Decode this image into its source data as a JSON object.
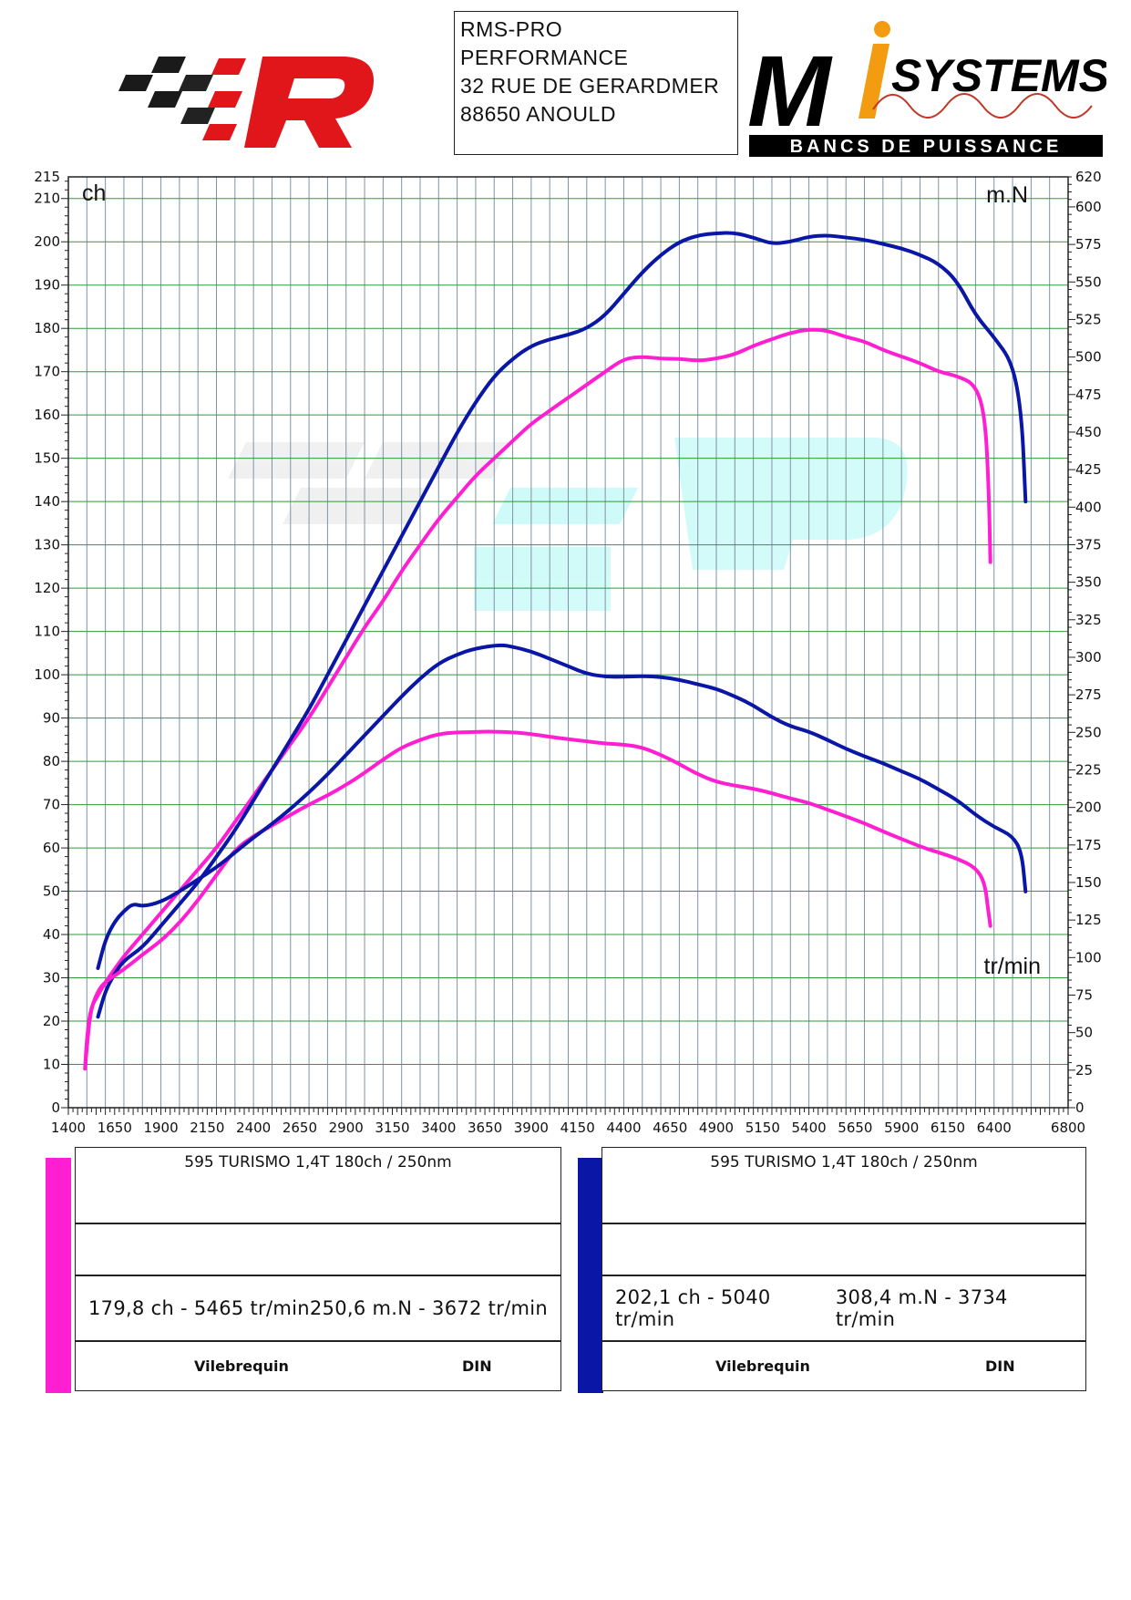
{
  "header": {
    "address_lines": [
      "RMS-PRO",
      "PERFORMANCE",
      "32 RUE DE GERARDMER",
      "88650 ANOULD"
    ],
    "logo_right": {
      "brand": "M",
      "brand_suffix": "SYSTEMS",
      "tagline": "BANCS DE PUISSANCE"
    }
  },
  "chart_data": {
    "type": "line",
    "xlabel": "tr/min",
    "ylabel_left": "ch",
    "ylabel_right": "m.N",
    "xlim": [
      1400,
      6800
    ],
    "ylim_left": [
      0,
      215
    ],
    "ylim_right": [
      0,
      620
    ],
    "x_ticks": [
      1400,
      1650,
      1900,
      2150,
      2400,
      2650,
      2900,
      3150,
      3400,
      3650,
      3900,
      4150,
      4400,
      4650,
      4900,
      5150,
      5400,
      5650,
      5900,
      6150,
      6400,
      6800
    ],
    "y_ticks_left": [
      0,
      10,
      20,
      30,
      40,
      50,
      60,
      70,
      80,
      90,
      100,
      110,
      120,
      130,
      140,
      150,
      160,
      170,
      180,
      190,
      200,
      210,
      215
    ],
    "y_ticks_right": [
      0,
      25,
      50,
      75,
      100,
      125,
      150,
      175,
      200,
      225,
      250,
      275,
      300,
      325,
      350,
      375,
      400,
      425,
      450,
      475,
      500,
      525,
      550,
      575,
      600,
      620
    ],
    "grid": true,
    "series": [
      {
        "name": "Power (pink)",
        "axis": "left",
        "color": "#ff1fd2",
        "points": [
          [
            1490,
            9
          ],
          [
            1500,
            16
          ],
          [
            1520,
            23
          ],
          [
            1560,
            26
          ],
          [
            1600,
            29
          ],
          [
            1650,
            32
          ],
          [
            1700,
            35
          ],
          [
            1800,
            40
          ],
          [
            1900,
            45
          ],
          [
            2000,
            50
          ],
          [
            2100,
            55
          ],
          [
            2200,
            60
          ],
          [
            2300,
            66
          ],
          [
            2400,
            72
          ],
          [
            2500,
            78
          ],
          [
            2600,
            84
          ],
          [
            2700,
            90
          ],
          [
            2800,
            97
          ],
          [
            2900,
            104
          ],
          [
            3000,
            111
          ],
          [
            3100,
            117
          ],
          [
            3200,
            124
          ],
          [
            3300,
            130
          ],
          [
            3400,
            136
          ],
          [
            3500,
            141
          ],
          [
            3600,
            146
          ],
          [
            3700,
            150
          ],
          [
            3800,
            154
          ],
          [
            3900,
            158
          ],
          [
            4000,
            161
          ],
          [
            4100,
            164
          ],
          [
            4200,
            167
          ],
          [
            4300,
            170
          ],
          [
            4400,
            173
          ],
          [
            4500,
            173.5
          ],
          [
            4600,
            173
          ],
          [
            4700,
            173
          ],
          [
            4800,
            172.5
          ],
          [
            4900,
            173
          ],
          [
            5000,
            174
          ],
          [
            5100,
            176
          ],
          [
            5200,
            177.5
          ],
          [
            5300,
            179
          ],
          [
            5400,
            179.8
          ],
          [
            5500,
            179.5
          ],
          [
            5600,
            178
          ],
          [
            5700,
            177
          ],
          [
            5800,
            175
          ],
          [
            5900,
            173.5
          ],
          [
            6000,
            172
          ],
          [
            6100,
            170
          ],
          [
            6200,
            169
          ],
          [
            6300,
            167
          ],
          [
            6350,
            160
          ],
          [
            6370,
            145
          ],
          [
            6380,
            126
          ]
        ]
      },
      {
        "name": "Power (blue)",
        "axis": "left",
        "color": "#0a16a6",
        "points": [
          [
            1560,
            21
          ],
          [
            1600,
            27
          ],
          [
            1650,
            31
          ],
          [
            1700,
            34
          ],
          [
            1800,
            37
          ],
          [
            1900,
            42
          ],
          [
            2000,
            47
          ],
          [
            2100,
            52
          ],
          [
            2200,
            58
          ],
          [
            2300,
            64
          ],
          [
            2400,
            71
          ],
          [
            2500,
            78
          ],
          [
            2600,
            85
          ],
          [
            2700,
            92
          ],
          [
            2800,
            100
          ],
          [
            2900,
            108
          ],
          [
            3000,
            116
          ],
          [
            3100,
            124
          ],
          [
            3200,
            132
          ],
          [
            3300,
            140
          ],
          [
            3400,
            148
          ],
          [
            3500,
            156
          ],
          [
            3600,
            163
          ],
          [
            3700,
            169
          ],
          [
            3800,
            173
          ],
          [
            3900,
            176
          ],
          [
            4000,
            177.5
          ],
          [
            4100,
            178.5
          ],
          [
            4200,
            180
          ],
          [
            4300,
            183
          ],
          [
            4400,
            188
          ],
          [
            4500,
            193
          ],
          [
            4600,
            197
          ],
          [
            4700,
            200
          ],
          [
            4800,
            201.5
          ],
          [
            4900,
            202
          ],
          [
            5000,
            202.1
          ],
          [
            5100,
            201
          ],
          [
            5200,
            199.5
          ],
          [
            5300,
            200
          ],
          [
            5400,
            201.2
          ],
          [
            5500,
            201.5
          ],
          [
            5600,
            201
          ],
          [
            5700,
            200.5
          ],
          [
            5800,
            199.5
          ],
          [
            5900,
            198.5
          ],
          [
            6000,
            197
          ],
          [
            6100,
            195
          ],
          [
            6200,
            191
          ],
          [
            6300,
            183
          ],
          [
            6400,
            178
          ],
          [
            6500,
            172
          ],
          [
            6550,
            160
          ],
          [
            6570,
            140
          ]
        ]
      },
      {
        "name": "Torque (pink)",
        "axis": "right",
        "color": "#ff1fd2",
        "points": [
          [
            1490,
            26
          ],
          [
            1500,
            40
          ],
          [
            1520,
            65
          ],
          [
            1560,
            78
          ],
          [
            1600,
            84
          ],
          [
            1700,
            92
          ],
          [
            1800,
            102
          ],
          [
            1900,
            111
          ],
          [
            2000,
            123
          ],
          [
            2100,
            138
          ],
          [
            2200,
            155
          ],
          [
            2300,
            172
          ],
          [
            2400,
            181
          ],
          [
            2500,
            188
          ],
          [
            2600,
            195
          ],
          [
            2700,
            202
          ],
          [
            2800,
            208
          ],
          [
            2900,
            215
          ],
          [
            3000,
            223
          ],
          [
            3100,
            232
          ],
          [
            3200,
            240
          ],
          [
            3300,
            245
          ],
          [
            3400,
            249
          ],
          [
            3500,
            250
          ],
          [
            3600,
            250.3
          ],
          [
            3672,
            250.6
          ],
          [
            3800,
            250
          ],
          [
            3900,
            249
          ],
          [
            4000,
            247
          ],
          [
            4100,
            245.5
          ],
          [
            4200,
            244
          ],
          [
            4300,
            242.5
          ],
          [
            4400,
            242
          ],
          [
            4500,
            240
          ],
          [
            4600,
            235
          ],
          [
            4700,
            229
          ],
          [
            4800,
            222
          ],
          [
            4900,
            217
          ],
          [
            5000,
            214.5
          ],
          [
            5100,
            212.5
          ],
          [
            5200,
            209.5
          ],
          [
            5300,
            206
          ],
          [
            5400,
            203
          ],
          [
            5500,
            198.5
          ],
          [
            5600,
            194
          ],
          [
            5700,
            189.5
          ],
          [
            5800,
            184
          ],
          [
            5900,
            179
          ],
          [
            6000,
            174
          ],
          [
            6100,
            170
          ],
          [
            6200,
            166
          ],
          [
            6300,
            160
          ],
          [
            6350,
            150
          ],
          [
            6370,
            130
          ],
          [
            6380,
            121
          ]
        ]
      },
      {
        "name": "Torque (blue)",
        "axis": "right",
        "color": "#0a16a6",
        "points": [
          [
            1560,
            93
          ],
          [
            1600,
            112
          ],
          [
            1650,
            124
          ],
          [
            1700,
            131
          ],
          [
            1750,
            136
          ],
          [
            1800,
            134
          ],
          [
            1900,
            137
          ],
          [
            2000,
            144
          ],
          [
            2100,
            152
          ],
          [
            2200,
            160
          ],
          [
            2300,
            170
          ],
          [
            2400,
            180
          ],
          [
            2500,
            189
          ],
          [
            2600,
            199
          ],
          [
            2700,
            210
          ],
          [
            2800,
            222
          ],
          [
            2900,
            235
          ],
          [
            3000,
            248
          ],
          [
            3100,
            261
          ],
          [
            3200,
            274
          ],
          [
            3300,
            286
          ],
          [
            3400,
            296
          ],
          [
            3500,
            302
          ],
          [
            3600,
            306
          ],
          [
            3734,
            308.4
          ],
          [
            3800,
            307
          ],
          [
            3900,
            304
          ],
          [
            4000,
            299
          ],
          [
            4100,
            294
          ],
          [
            4200,
            289
          ],
          [
            4300,
            287
          ],
          [
            4400,
            287
          ],
          [
            4500,
            287.5
          ],
          [
            4600,
            287
          ],
          [
            4700,
            285
          ],
          [
            4800,
            282
          ],
          [
            4900,
            279
          ],
          [
            5000,
            274
          ],
          [
            5100,
            268
          ],
          [
            5200,
            260
          ],
          [
            5300,
            254
          ],
          [
            5400,
            250.5
          ],
          [
            5500,
            245
          ],
          [
            5600,
            239
          ],
          [
            5700,
            234
          ],
          [
            5800,
            229.5
          ],
          [
            5900,
            224
          ],
          [
            6000,
            219
          ],
          [
            6100,
            212
          ],
          [
            6200,
            205
          ],
          [
            6300,
            195
          ],
          [
            6400,
            187
          ],
          [
            6500,
            181
          ],
          [
            6550,
            170
          ],
          [
            6570,
            144
          ]
        ]
      }
    ]
  },
  "legend": [
    {
      "color": "#ff1fd2",
      "title": "595 TURISMO 1,4T 180ch / 250nm",
      "power": "179,8 ch - 5465 tr/min",
      "torque": "250,6 m.N - 3672 tr/min",
      "label_a": "Vilebrequin",
      "label_b": "DIN"
    },
    {
      "color": "#0a16a6",
      "title": "595 TURISMO 1,4T 180ch / 250nm",
      "power": "202,1 ch - 5040 tr/min",
      "torque": "308,4 m.N - 3734 tr/min",
      "label_a": "Vilebrequin",
      "label_b": "DIN"
    }
  ]
}
